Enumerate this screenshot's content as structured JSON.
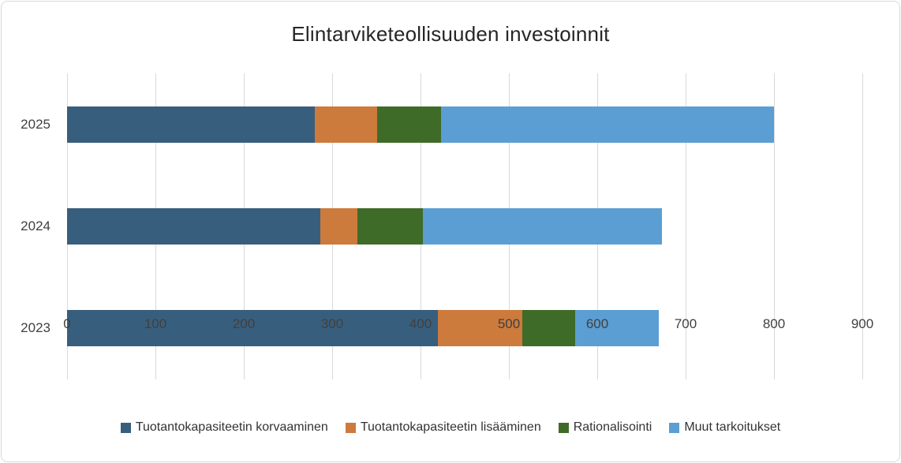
{
  "chart_data": {
    "type": "bar",
    "orientation": "horizontal_stacked",
    "title": "Elintarviketeollisuuden investoinnit",
    "categories": [
      "2025",
      "2024",
      "2023"
    ],
    "series": [
      {
        "name": "Tuotantokapasiteetin korvaaminen",
        "color": "#385E7D",
        "values": [
          280,
          287,
          420
        ]
      },
      {
        "name": "Tuotantokapasiteetin lisääminen",
        "color": "#CD7A3D",
        "values": [
          71,
          42,
          95
        ]
      },
      {
        "name": "Rationalisointi",
        "color": "#3F6B29",
        "values": [
          72,
          74,
          60
        ]
      },
      {
        "name": "Muut tarkoitukset",
        "color": "#5B9ED3",
        "values": [
          377,
          270,
          95
        ]
      }
    ],
    "totals": [
      800,
      673,
      670
    ],
    "xlim": [
      0,
      900
    ],
    "x_ticks": [
      0,
      100,
      200,
      300,
      400,
      500,
      600,
      700,
      800,
      900
    ],
    "grid": "vertical",
    "legend_position": "bottom"
  },
  "colors": {
    "gridline": "#D9D9D9",
    "frame_border": "#D9D9D9",
    "tick_text": "#404040",
    "title_text": "#262626",
    "background": "#FFFFFF"
  }
}
